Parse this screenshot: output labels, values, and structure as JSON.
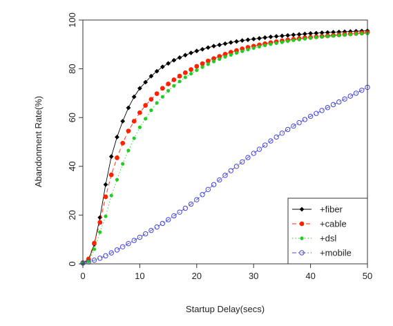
{
  "chart_data": {
    "type": "line",
    "xlabel": "Startup Delay(secs)",
    "ylabel": "Abandonment Rate(%)",
    "xlim": [
      0,
      50
    ],
    "ylim": [
      0,
      100
    ],
    "xticks": [
      0,
      10,
      20,
      30,
      40,
      50
    ],
    "yticks": [
      0,
      20,
      40,
      60,
      80,
      100
    ],
    "grid": false,
    "legend_position": "bottom-right",
    "x": [
      0,
      1,
      2,
      3,
      4,
      5,
      6,
      7,
      8,
      9,
      10,
      11,
      12,
      13,
      14,
      15,
      16,
      17,
      18,
      19,
      20,
      21,
      22,
      23,
      24,
      25,
      26,
      27,
      28,
      29,
      30,
      31,
      32,
      33,
      34,
      35,
      36,
      37,
      38,
      39,
      40,
      41,
      42,
      43,
      44,
      45,
      46,
      47,
      48,
      49,
      50
    ],
    "series": [
      {
        "name": "+fiber",
        "color": "#000000",
        "marker": "diamond",
        "dash": "solid",
        "values": [
          0.5,
          1.5,
          8,
          19,
          32.5,
          44,
          52,
          58.5,
          64,
          68.5,
          72,
          74.5,
          77,
          79,
          80.8,
          82.2,
          83.5,
          84.6,
          85.6,
          86.5,
          87.3,
          88,
          88.7,
          89.3,
          89.8,
          90.3,
          90.8,
          91.2,
          91.6,
          91.9,
          92.2,
          92.5,
          92.8,
          93.1,
          93.3,
          93.5,
          93.7,
          93.9,
          94.1,
          94.3,
          94.5,
          94.6,
          94.8,
          94.9,
          95,
          95.1,
          95.2,
          95.3,
          95.4,
          95.5,
          95.6
        ]
      },
      {
        "name": "+cable",
        "color": "#ff2200",
        "marker": "circle",
        "dash": "dashed",
        "values": [
          0.5,
          2,
          8.5,
          17,
          27.5,
          36.5,
          43.5,
          49.5,
          54.5,
          58.5,
          62,
          65,
          67.5,
          69.8,
          72,
          73.8,
          75.5,
          77,
          78.4,
          79.7,
          81,
          82.1,
          83.2,
          84.2,
          85.1,
          86,
          86.8,
          87.5,
          88.2,
          88.8,
          89.3,
          89.8,
          90.3,
          90.7,
          91.1,
          91.5,
          91.8,
          92.1,
          92.4,
          92.7,
          92.9,
          93.1,
          93.3,
          93.5,
          93.7,
          93.9,
          94.1,
          94.3,
          94.5,
          94.7,
          94.9
        ]
      },
      {
        "name": "+dsl",
        "color": "#22cc22",
        "marker": "circle",
        "dash": "dotted",
        "values": [
          0.3,
          1,
          6,
          13,
          19.5,
          28,
          34.5,
          41,
          46.5,
          51.5,
          56,
          59.5,
          63,
          66,
          68.5,
          71,
          73,
          74.8,
          76.5,
          78,
          79.4,
          80.7,
          81.9,
          83,
          84,
          84.9,
          85.7,
          86.5,
          87.2,
          87.9,
          88.5,
          89.1,
          89.6,
          90.1,
          90.5,
          90.9,
          91.3,
          91.7,
          92,
          92.3,
          92.6,
          92.9,
          93.1,
          93.3,
          93.5,
          93.7,
          93.9,
          94.1,
          94.3,
          94.4,
          94.5
        ]
      },
      {
        "name": "+mobile",
        "color": "#4444dd",
        "marker": "open-circle",
        "dash": "dashdot",
        "values": [
          0.3,
          0.8,
          1.5,
          2.3,
          3.3,
          4.5,
          5.7,
          7,
          8.3,
          9.6,
          10.9,
          12.3,
          13.7,
          15.1,
          16.6,
          18.1,
          19.7,
          21.2,
          22.8,
          24.5,
          26.3,
          28.4,
          30.5,
          32.5,
          34.4,
          36.3,
          38.2,
          40,
          41.8,
          43.6,
          45.3,
          47,
          48.7,
          50.4,
          52,
          53.6,
          55.1,
          56.5,
          57.9,
          59.2,
          60.5,
          61.7,
          62.9,
          64.1,
          65.3,
          66.4,
          67.6,
          68.8,
          70,
          71.2,
          72.4
        ]
      }
    ]
  }
}
